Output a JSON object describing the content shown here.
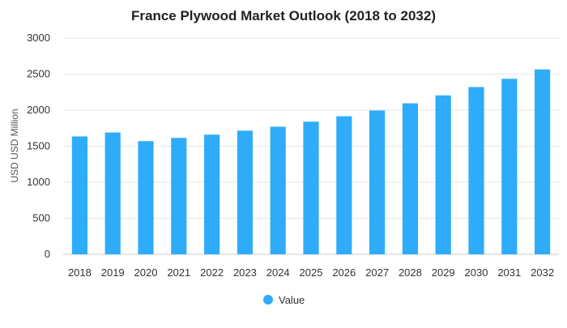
{
  "chart_data": {
    "type": "bar",
    "title": "France Plywood Market Outlook (2018 to 2032)",
    "xlabel": "",
    "ylabel": "USD USD Million",
    "categories": [
      "2018",
      "2019",
      "2020",
      "2021",
      "2022",
      "2023",
      "2024",
      "2025",
      "2026",
      "2027",
      "2028",
      "2029",
      "2030",
      "2031",
      "2032"
    ],
    "series": [
      {
        "name": "Value",
        "color": "#2eacf9",
        "values": [
          1635,
          1690,
          1570,
          1615,
          1660,
          1715,
          1770,
          1840,
          1915,
          1995,
          2095,
          2205,
          2320,
          2435,
          2565
        ]
      }
    ],
    "ylim": [
      0,
      3000
    ],
    "yticks": [
      "0",
      "500",
      "1000",
      "1500",
      "2000",
      "2500",
      "3000"
    ],
    "grid": true,
    "legend_position": "bottom"
  }
}
